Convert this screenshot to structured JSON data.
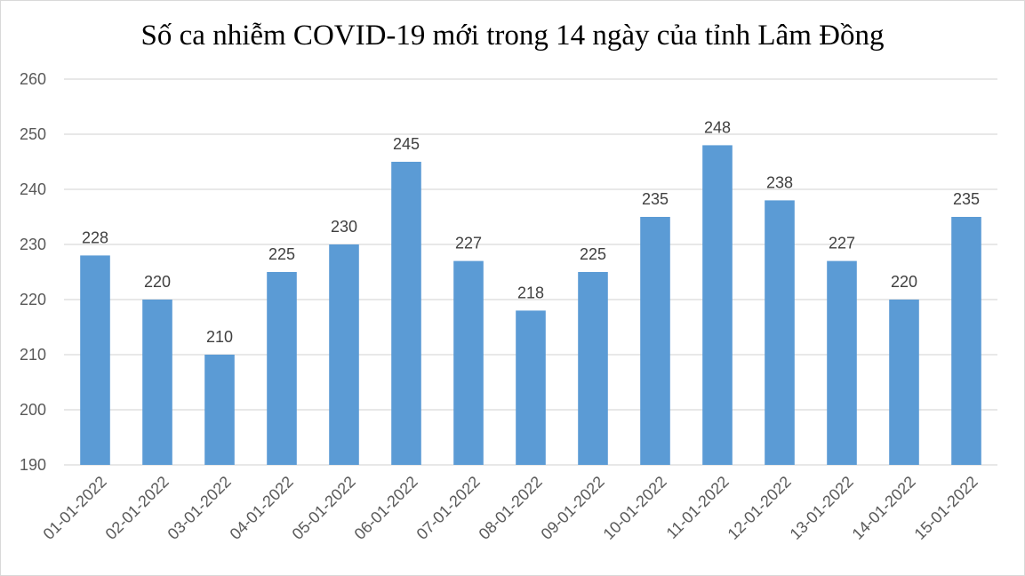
{
  "chart_data": {
    "type": "bar",
    "title": "Số ca nhiễm COVID-19 mới trong 14 ngày của tỉnh Lâm Đồng",
    "categories": [
      "01-01-2022",
      "02-01-2022",
      "03-01-2022",
      "04-01-2022",
      "05-01-2022",
      "06-01-2022",
      "07-01-2022",
      "08-01-2022",
      "09-01-2022",
      "10-01-2022",
      "11-01-2022",
      "12-01-2022",
      "13-01-2022",
      "14-01-2022",
      "15-01-2022"
    ],
    "values": [
      228,
      220,
      210,
      225,
      230,
      245,
      227,
      218,
      225,
      235,
      248,
      238,
      227,
      220,
      235
    ],
    "ylim": [
      190,
      260
    ],
    "yticks": [
      190,
      200,
      210,
      220,
      230,
      240,
      250,
      260
    ],
    "grid": true,
    "legend": "none",
    "bar_color": "#5b9bd5",
    "grid_color": "#d9d9d9"
  }
}
